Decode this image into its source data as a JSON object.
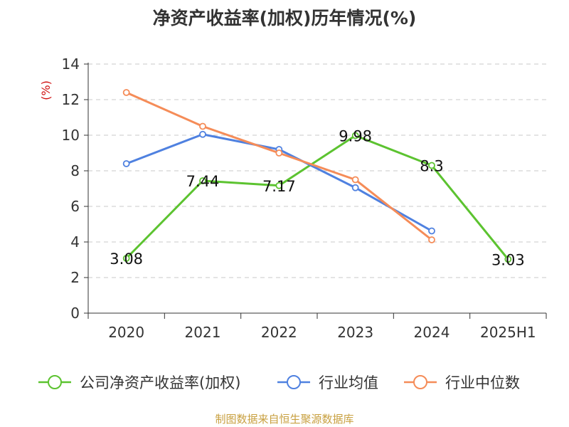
{
  "title": "净资产收益率(加权)历年情况(%)",
  "footer": "制图数据来自恒生聚源数据库",
  "chart_data": {
    "type": "line",
    "categories": [
      "2020",
      "2021",
      "2022",
      "2023",
      "2024",
      "2025H1"
    ],
    "ylabel": "(%)",
    "ylim": [
      0,
      14
    ],
    "yticks": [
      0,
      2,
      4,
      6,
      8,
      10,
      12,
      14
    ],
    "grid": true,
    "legend_position": "bottom",
    "series": [
      {
        "name": "公司净资产收益率(加权)",
        "color": "#5cc330",
        "values": [
          3.08,
          7.44,
          7.17,
          9.98,
          8.3,
          3.03
        ],
        "labels": [
          "3.08",
          "7.44",
          "7.17",
          "9.98",
          "8.3",
          "3.03"
        ]
      },
      {
        "name": "行业均值",
        "color": "#4f81e0",
        "values": [
          8.4,
          10.05,
          9.2,
          7.05,
          4.62,
          null
        ]
      },
      {
        "name": "行业中位数",
        "color": "#f58c58",
        "values": [
          12.4,
          10.5,
          9.0,
          7.5,
          4.12,
          null
        ]
      }
    ]
  }
}
